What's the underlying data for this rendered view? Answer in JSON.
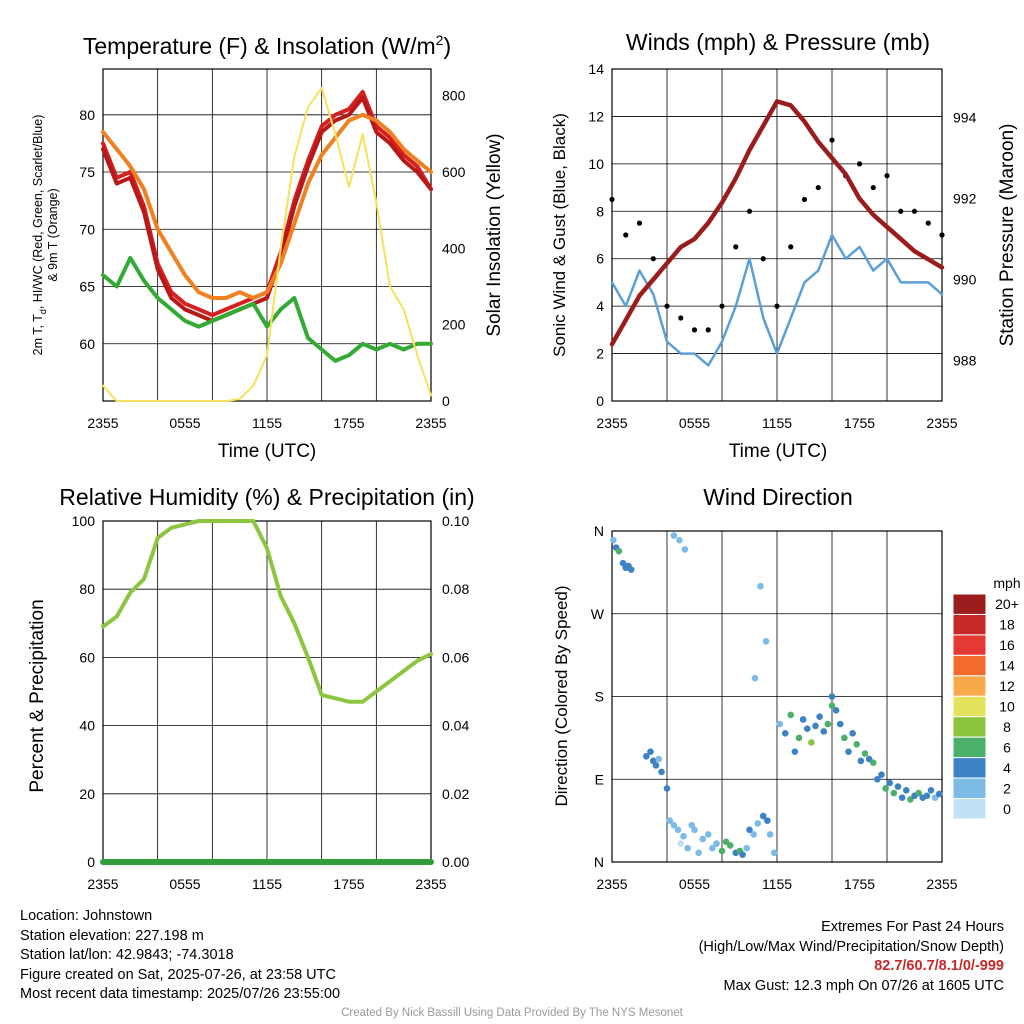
{
  "colors": {
    "t2m": "#d62020",
    "td": "#33aa33",
    "hiwc": "#b81818",
    "t9m": "#f08020",
    "insolation": "#f7e05c",
    "wind": "#5a9fd8",
    "gust": "#000000",
    "pressure": "#9b1c1c",
    "rh": "#8cc63f",
    "precip": "#2d9e3a"
  },
  "panels": {
    "temp": {
      "title_main": "Temperature (F) & Insolation (W/m",
      "title_sup": "2",
      "title_end": ")",
      "ylabel_line1": "2m T, T",
      "ylabel_sub": "d",
      "ylabel_rest": ", HI/WC (Red, Green, Scarlet/Blue)",
      "ylabel_line2": "& 9m T (Orange)",
      "y2label": "Solar Insolation (Yellow)",
      "xlabel": "Time (UTC)"
    },
    "wind": {
      "title": "Winds (mph) & Pressure (mb)",
      "ylabel": "Sonic Wind & Gust (Blue, Black)",
      "y2label": "Station Pressure (Maroon)",
      "xlabel": "Time (UTC)"
    },
    "rh": {
      "title": "Relative Humidity (%) & Precipitation (in)",
      "ylabel": "Percent & Precipitation"
    },
    "dir": {
      "title": "Wind Direction",
      "ylabel": "Direction (Colored By Speed)",
      "colorbar_title": "mph",
      "colorbar_labels": [
        "20+",
        "18",
        "16",
        "14",
        "12",
        "10",
        "8",
        "6",
        "4",
        "2",
        "0"
      ],
      "colorbar_colors": [
        "#9b1c1c",
        "#c62828",
        "#e53935",
        "#f26b2d",
        "#f8a94b",
        "#e3e25a",
        "#8cc63f",
        "#4caf6a",
        "#3d83c4",
        "#7bbbe6",
        "#bfe3f5"
      ]
    }
  },
  "chart_data": [
    {
      "type": "line",
      "panel": "temp",
      "x_ticks": [
        "2355",
        "0555",
        "1155",
        "1755",
        "2355"
      ],
      "ylim": [
        55,
        84
      ],
      "y_ticks": [
        60,
        65,
        70,
        75,
        80
      ],
      "y2lim": [
        0,
        870
      ],
      "y2_ticks": [
        0,
        200,
        400,
        600,
        800
      ],
      "hours": [
        0,
        1,
        2,
        3,
        4,
        5,
        6,
        7,
        8,
        9,
        10,
        11,
        12,
        13,
        14,
        15,
        16,
        17,
        18,
        19,
        20,
        21,
        22,
        23,
        24
      ],
      "series": [
        {
          "key": "t2m",
          "axis": "left",
          "values": [
            77.5,
            74.5,
            75.0,
            72.0,
            67.0,
            64.5,
            63.5,
            63.0,
            62.5,
            63.0,
            63.5,
            64.0,
            64.5,
            68.0,
            72.5,
            76.0,
            79.0,
            80.0,
            80.5,
            82.0,
            79.0,
            78.0,
            76.5,
            75.5,
            73.5
          ]
        },
        {
          "key": "hiwc",
          "axis": "left",
          "values": [
            77.0,
            74.0,
            74.5,
            71.5,
            66.5,
            64.0,
            63.0,
            62.5,
            62.0,
            62.5,
            63.0,
            63.5,
            64.0,
            67.5,
            72.0,
            75.5,
            78.5,
            79.5,
            80.0,
            81.5,
            78.5,
            77.5,
            76.0,
            75.0,
            73.5
          ]
        },
        {
          "key": "t9m",
          "axis": "left",
          "values": [
            78.5,
            77.0,
            75.5,
            73.5,
            70.0,
            68.0,
            66.0,
            64.5,
            64.0,
            64.0,
            64.5,
            64.0,
            64.5,
            67.0,
            70.5,
            74.0,
            76.5,
            78.0,
            79.5,
            80.0,
            79.5,
            78.5,
            77.0,
            76.0,
            75.0
          ]
        },
        {
          "key": "td",
          "axis": "left",
          "values": [
            66.0,
            65.0,
            67.5,
            65.5,
            64.0,
            63.0,
            62.0,
            61.5,
            62.0,
            62.5,
            63.0,
            63.5,
            61.5,
            63.0,
            64.0,
            60.5,
            59.5,
            58.5,
            59.0,
            60.0,
            59.5,
            60.0,
            59.5,
            60.0,
            60.0
          ]
        },
        {
          "key": "insolation",
          "axis": "right",
          "values": [
            40,
            0,
            0,
            0,
            0,
            0,
            0,
            0,
            0,
            0,
            5,
            40,
            120,
            400,
            640,
            770,
            820,
            700,
            560,
            700,
            520,
            300,
            240,
            120,
            15
          ]
        }
      ]
    },
    {
      "type": "line",
      "panel": "wind",
      "x_ticks": [
        "2355",
        "0555",
        "1155",
        "1755",
        "2355"
      ],
      "ylim": [
        0,
        14
      ],
      "y_ticks": [
        0,
        2,
        4,
        6,
        8,
        10,
        12,
        14
      ],
      "y2lim": [
        987.0,
        995.2
      ],
      "y2_ticks": [
        988,
        990,
        992,
        994
      ],
      "hours": [
        0,
        1,
        2,
        3,
        4,
        5,
        6,
        7,
        8,
        9,
        10,
        11,
        12,
        13,
        14,
        15,
        16,
        17,
        18,
        19,
        20,
        21,
        22,
        23,
        24
      ],
      "series": [
        {
          "key": "wind",
          "axis": "left",
          "values": [
            5.0,
            4.0,
            5.5,
            4.5,
            2.5,
            2.0,
            2.0,
            1.5,
            2.5,
            4.0,
            6.0,
            3.5,
            2.0,
            3.5,
            5.0,
            5.5,
            7.0,
            6.0,
            6.5,
            5.5,
            6.0,
            5.0,
            5.0,
            5.0,
            4.5
          ],
          "name": "Sonic Wind"
        },
        {
          "key": "gust",
          "axis": "left",
          "values": [
            8.5,
            7.0,
            7.5,
            6.0,
            4.0,
            3.5,
            3.0,
            3.0,
            4.0,
            6.5,
            8.0,
            6.0,
            4.0,
            6.5,
            8.5,
            9.0,
            11.0,
            9.5,
            10.0,
            9.0,
            9.5,
            8.0,
            8.0,
            7.5,
            7.0
          ],
          "name": "Gust"
        },
        {
          "key": "pressure",
          "axis": "right",
          "values": [
            988.4,
            989.0,
            989.6,
            990.0,
            990.4,
            990.8,
            991.0,
            991.4,
            991.9,
            992.5,
            993.2,
            993.8,
            994.4,
            994.3,
            993.9,
            993.4,
            993.0,
            992.6,
            992.0,
            991.6,
            991.3,
            991.0,
            990.7,
            990.5,
            990.3
          ],
          "name": "Pressure"
        }
      ],
      "gust_markers": "dots"
    },
    {
      "type": "line",
      "panel": "rh",
      "x_ticks": [
        "2355",
        "0555",
        "1155",
        "1755",
        "2355"
      ],
      "ylim": [
        0,
        100
      ],
      "y_ticks": [
        0,
        20,
        40,
        60,
        80,
        100
      ],
      "y2lim": [
        0.0,
        0.1
      ],
      "y2_ticks": [
        "0.00",
        "0.02",
        "0.04",
        "0.06",
        "0.08",
        "0.10"
      ],
      "hours": [
        0,
        1,
        2,
        3,
        4,
        5,
        6,
        7,
        8,
        9,
        10,
        11,
        12,
        13,
        14,
        15,
        16,
        17,
        18,
        19,
        20,
        21,
        22,
        23,
        24
      ],
      "series": [
        {
          "key": "rh",
          "axis": "left",
          "values": [
            69,
            72,
            79,
            83,
            95,
            98,
            99,
            100,
            100,
            100,
            100,
            100,
            92,
            78,
            70,
            60,
            49,
            48,
            47,
            47,
            50,
            53,
            56,
            59,
            61
          ]
        },
        {
          "key": "precip",
          "axis": "right",
          "values": [
            0,
            0,
            0,
            0,
            0,
            0,
            0,
            0,
            0,
            0,
            0,
            0,
            0,
            0,
            0,
            0,
            0,
            0,
            0,
            0,
            0,
            0,
            0,
            0,
            0
          ]
        }
      ]
    },
    {
      "type": "scatter",
      "panel": "dir",
      "x_ticks": [
        "2355",
        "0555",
        "1155",
        "1755",
        "2355"
      ],
      "y_ticks": [
        "N",
        "E",
        "S",
        "W",
        "N"
      ],
      "ylim": [
        0,
        360
      ],
      "points_hour": [
        0.1,
        0.3,
        0.5,
        0.8,
        1.0,
        1.2,
        1.4,
        2.5,
        2.8,
        3.0,
        3.2,
        3.4,
        3.6,
        4.0,
        4.2,
        4.5,
        4.8,
        5.0,
        5.2,
        5.5,
        5.8,
        6.0,
        6.3,
        6.6,
        7.0,
        7.3,
        7.6,
        8.0,
        8.3,
        8.6,
        9.0,
        9.3,
        9.5,
        9.8,
        10.0,
        10.3,
        10.6,
        11.0,
        11.3,
        11.5,
        11.8,
        12.2,
        12.6,
        13.0,
        13.3,
        13.6,
        13.9,
        14.2,
        14.5,
        14.8,
        15.1,
        15.4,
        15.7,
        16.0,
        16.3,
        16.6,
        16.9,
        17.2,
        17.5,
        17.8,
        18.1,
        18.4,
        18.7,
        19.0,
        19.3,
        19.6,
        19.9,
        20.2,
        20.5,
        20.8,
        21.1,
        21.4,
        21.7,
        22.0,
        22.3,
        22.6,
        22.9,
        23.2,
        23.5,
        23.8,
        4.5,
        4.9,
        5.3,
        10.8,
        11.2,
        10.4,
        16.0
      ],
      "points_dir": [
        350,
        342,
        338,
        325,
        320,
        322,
        318,
        115,
        120,
        110,
        105,
        112,
        98,
        80,
        45,
        40,
        35,
        20,
        28,
        15,
        40,
        35,
        10,
        25,
        30,
        15,
        20,
        12,
        22,
        18,
        10,
        12,
        8,
        15,
        35,
        30,
        42,
        50,
        45,
        30,
        10,
        150,
        140,
        160,
        120,
        135,
        155,
        145,
        130,
        148,
        158,
        142,
        150,
        170,
        165,
        150,
        135,
        120,
        140,
        128,
        110,
        118,
        112,
        108,
        90,
        95,
        80,
        86,
        75,
        82,
        70,
        78,
        68,
        72,
        75,
        70,
        72,
        78,
        70,
        74,
        355,
        350,
        340,
        300,
        240,
        200,
        180
      ],
      "points_speed": [
        2,
        4,
        5,
        4,
        3,
        4,
        4,
        3,
        4,
        4,
        3,
        2,
        3,
        3,
        2,
        1,
        1,
        0,
        1,
        1,
        2,
        2,
        1,
        2,
        2,
        1,
        2,
        5,
        6,
        5,
        4,
        6,
        3,
        2,
        4,
        2,
        2,
        3,
        4,
        1,
        1,
        2,
        3,
        5,
        4,
        6,
        4,
        3,
        7,
        4,
        3,
        4,
        5,
        6,
        3,
        4,
        5,
        3,
        4,
        6,
        4,
        5,
        3,
        6,
        4,
        3,
        5,
        4,
        5,
        4,
        3,
        4,
        6,
        4,
        5,
        3,
        4,
        3,
        2,
        4,
        1,
        1,
        2,
        1,
        2,
        2,
        3
      ]
    }
  ],
  "info": {
    "location": "Location: Johnstown",
    "elevation": "Station elevation: 227.198 m",
    "latlon": "Station lat/lon: 42.9843; -74.3018",
    "created": "Figure created on Sat, 2025-07-26, at 23:58 UTC",
    "recent": "Most recent data timestamp: 2025/07/26 23:55:00",
    "extremes_title": "Extremes For Past 24 Hours",
    "extremes_sub": "(High/Low/Max Wind/Precipitation/Snow Depth)",
    "extremes_values": "82.7/60.7/8.1/0/-999",
    "max_gust": "Max Gust: 12.3 mph On 07/26 at 1605 UTC",
    "credit": "Created By Nick Bassill Using Data Provided By The NYS Mesonet"
  }
}
